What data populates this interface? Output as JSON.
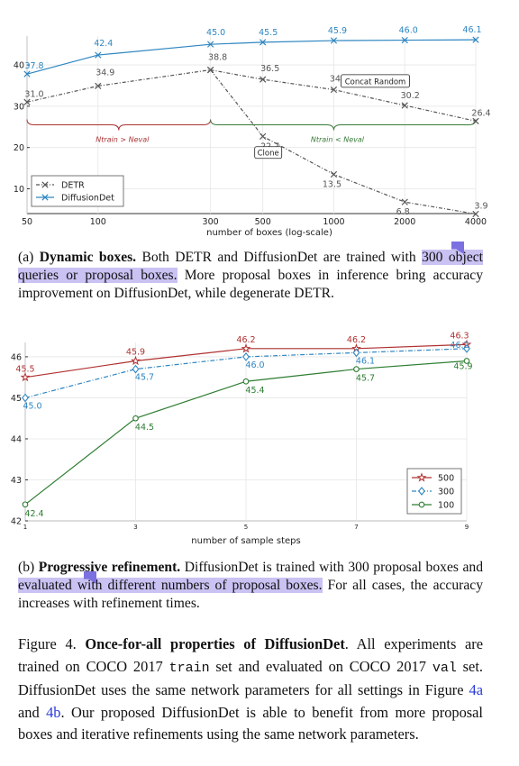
{
  "chart_data": [
    {
      "type": "line",
      "xlabel": "number of boxes (log-scale)",
      "xscale": "log",
      "x_ticks": [
        50,
        100,
        300,
        500,
        1000,
        2000,
        4000
      ],
      "y_ticks": [
        10,
        20,
        30,
        40
      ],
      "ylim": [
        4,
        47
      ],
      "legend": "bottom-left",
      "series": [
        {
          "name": "DETR",
          "color": "#555555",
          "x": [
            50,
            100,
            300,
            500,
            1000,
            2000,
            4000
          ],
          "values": [
            31.0,
            34.9,
            38.8,
            22.7,
            13.5,
            6.8,
            3.9
          ]
        },
        {
          "name": "DiffusionDet",
          "color": "#2e86c1",
          "x": [
            50,
            100,
            300,
            500,
            1000,
            2000,
            4000
          ],
          "values": [
            37.8,
            42.4,
            45.0,
            45.5,
            45.9,
            46.0,
            46.1
          ]
        },
        {
          "name": "",
          "color": "#555555",
          "x": [
            300,
            500,
            1000,
            2000,
            4000
          ],
          "values": [
            38.8,
            36.5,
            34.0,
            30.2,
            26.4
          ]
        }
      ],
      "annotations": {
        "concat_random": "Concat Random",
        "clone": "Clone",
        "region_left": "Ntrain > Neval",
        "region_right": "Ntrain < Neval"
      }
    },
    {
      "type": "line",
      "xlabel": "number of sample steps",
      "x_ticks": [
        1,
        3,
        5,
        7,
        9
      ],
      "y_ticks": [
        42,
        43,
        44,
        45,
        46
      ],
      "ylim": [
        42,
        46.35
      ],
      "legend": "bottom-right",
      "series": [
        {
          "name": "500",
          "color": "#b03030",
          "x": [
            1,
            3,
            5,
            7,
            9
          ],
          "values": [
            45.5,
            45.9,
            46.2,
            46.2,
            46.3
          ]
        },
        {
          "name": "300",
          "color": "#2e86c1",
          "x": [
            1,
            3,
            5,
            7,
            9
          ],
          "values": [
            45.0,
            45.7,
            46.0,
            46.1,
            46.2
          ]
        },
        {
          "name": "100",
          "color": "#2e7d32",
          "x": [
            1,
            3,
            5,
            7,
            9
          ],
          "values": [
            42.4,
            44.5,
            45.4,
            45.7,
            45.9
          ]
        }
      ]
    }
  ],
  "captions": {
    "a": {
      "label": "(a)",
      "title": "Dynamic boxes.",
      "t1": "Both DETR and DiffusionDet are trained with",
      "hl": "300 object queries or proposal boxes.",
      "t2": "More proposal boxes in inference bring accuracy improvement on DiffusionDet, while degenerate DETR."
    },
    "b": {
      "label": "(b)",
      "title": "Progressive refinement.",
      "t1": "DiffusionDet is trained with 300 proposal boxes and",
      "hl": "evaluated with different numbers of proposal boxes.",
      "t2": "For all cases, the accuracy increases with refinement times."
    }
  },
  "figure_caption": {
    "label": "Figure 4.",
    "title": "Once-for-all properties of DiffusionDet",
    "t1": ". All experiments are trained on COCO 2017",
    "train": "train",
    "t2": "set and evaluated on COCO 2017",
    "val": "val",
    "t3": "set. DiffusionDet uses the same network parameters for all settings in Figure",
    "ref_a": "4a",
    "and": "and",
    "ref_b": "4b",
    "t4": ". Our proposed DiffusionDet is able to benefit from more proposal boxes and iterative refinements using the same network parameters."
  }
}
